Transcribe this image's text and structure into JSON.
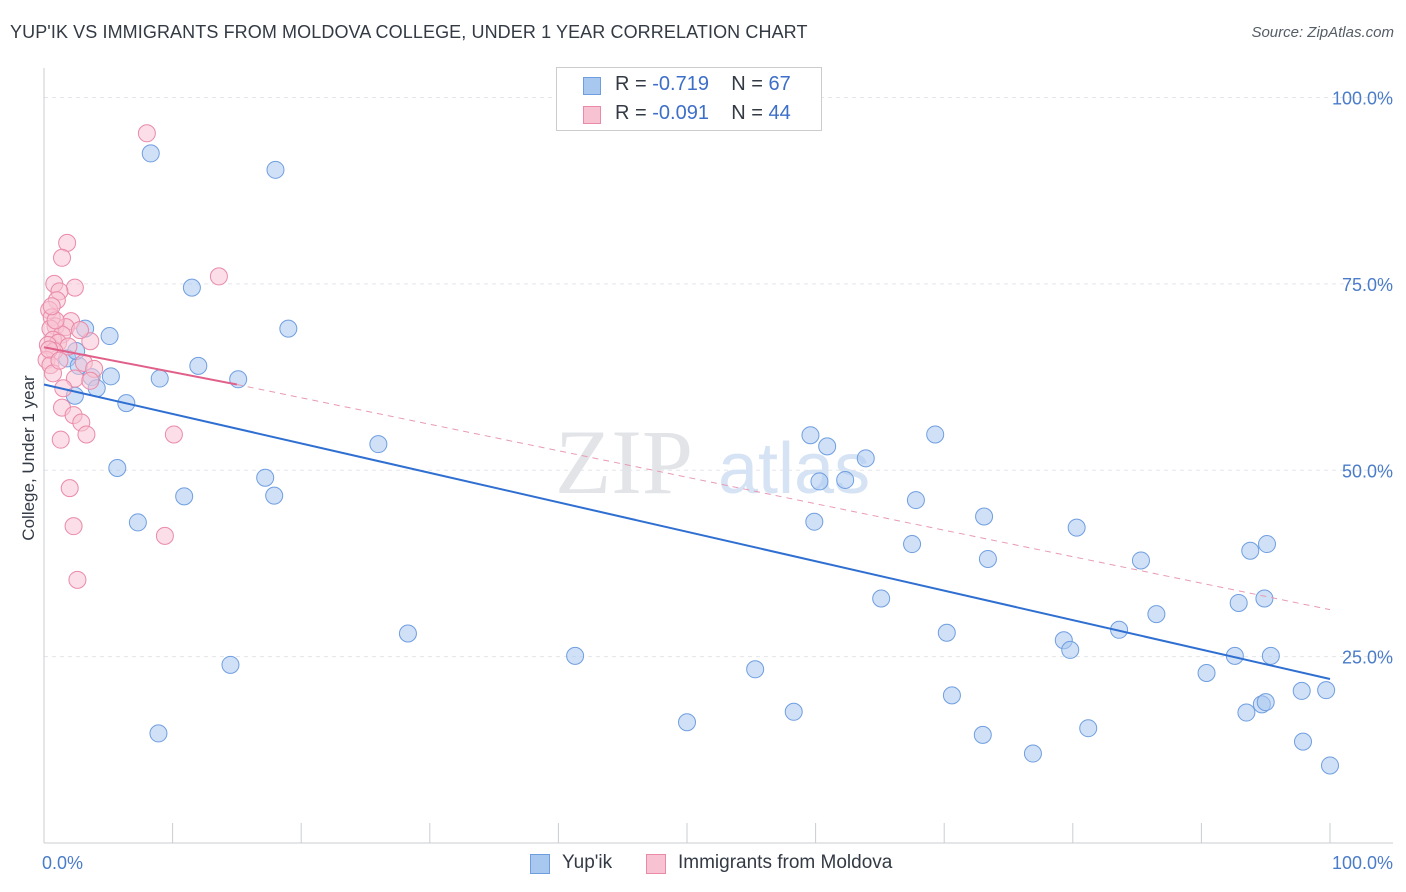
{
  "title": "YUP'IK VS IMMIGRANTS FROM MOLDOVA COLLEGE, UNDER 1 YEAR CORRELATION CHART",
  "source": "Source: ZipAtlas.com",
  "watermark": {
    "zip": "ZIP",
    "atlas": "atlas"
  },
  "legend_top": [
    {
      "r_label": "R = ",
      "r_value": "-0.719",
      "n_label": "N = ",
      "n_value": "67",
      "color": "#a9c8f0",
      "border": "#6f9ee0"
    },
    {
      "r_label": "R = ",
      "r_value": "-0.091",
      "n_label": "N = ",
      "n_value": "44",
      "color": "#f7c3d3",
      "border": "#ea8aa8"
    }
  ],
  "legend_bottom": [
    {
      "label": "Yup'ik",
      "color": "#a9c8f0",
      "border": "#6f9ee0"
    },
    {
      "label": "Immigrants from Moldova",
      "color": "#f7c3d3",
      "border": "#ea8aa8"
    }
  ],
  "chart_data": {
    "type": "scatter",
    "xlabel": "",
    "ylabel": "College, Under 1 year",
    "xlim": [
      0,
      100
    ],
    "ylim": [
      0,
      105
    ],
    "x_tick_labels": [
      {
        "value": 0,
        "label": "0.0%"
      },
      {
        "value": 100,
        "label": "100.0%"
      }
    ],
    "y_tick_labels": [
      {
        "value": 25,
        "label": "25.0%"
      },
      {
        "value": 50,
        "label": "50.0%"
      },
      {
        "value": 75,
        "label": "75.0%"
      },
      {
        "value": 100,
        "label": "100.0%"
      }
    ],
    "series": [
      {
        "name": "Yup'ik",
        "color": "#a9c8f0",
        "stroke": "#6f9ee0",
        "trend": {
          "x0": 0,
          "y0": 61.5,
          "x1": 100,
          "y1": 22.0,
          "color": "#2f6fd1"
        },
        "points": [
          [
            8.3,
            92.5
          ],
          [
            18.0,
            90.3
          ],
          [
            11.5,
            74.5
          ],
          [
            19.0,
            69.0
          ],
          [
            3.2,
            69.0
          ],
          [
            5.1,
            68.0
          ],
          [
            1.8,
            65.0
          ],
          [
            2.7,
            64.0
          ],
          [
            3.7,
            62.5
          ],
          [
            5.2,
            62.6
          ],
          [
            9.0,
            62.3
          ],
          [
            15.1,
            62.2
          ],
          [
            2.4,
            60.0
          ],
          [
            4.1,
            61.0
          ],
          [
            6.4,
            59.0
          ],
          [
            5.7,
            50.3
          ],
          [
            10.9,
            46.5
          ],
          [
            17.2,
            49.0
          ],
          [
            17.9,
            46.6
          ],
          [
            7.3,
            43.0
          ],
          [
            26.0,
            53.5
          ],
          [
            59.6,
            54.7
          ],
          [
            60.9,
            53.2
          ],
          [
            62.3,
            48.7
          ],
          [
            63.9,
            51.6
          ],
          [
            69.3,
            54.8
          ],
          [
            67.8,
            46.0
          ],
          [
            59.9,
            43.1
          ],
          [
            73.1,
            43.8
          ],
          [
            80.3,
            42.3
          ],
          [
            67.5,
            40.1
          ],
          [
            73.4,
            38.1
          ],
          [
            85.3,
            37.9
          ],
          [
            93.8,
            39.2
          ],
          [
            95.1,
            40.1
          ],
          [
            65.1,
            32.8
          ],
          [
            86.5,
            30.7
          ],
          [
            92.9,
            32.2
          ],
          [
            94.9,
            32.8
          ],
          [
            28.3,
            28.1
          ],
          [
            70.2,
            28.2
          ],
          [
            79.3,
            27.2
          ],
          [
            83.6,
            28.6
          ],
          [
            79.8,
            25.9
          ],
          [
            41.3,
            25.1
          ],
          [
            14.5,
            23.9
          ],
          [
            55.3,
            23.3
          ],
          [
            92.6,
            25.1
          ],
          [
            95.4,
            25.1
          ],
          [
            90.4,
            22.8
          ],
          [
            70.6,
            19.8
          ],
          [
            97.8,
            20.4
          ],
          [
            99.7,
            20.5
          ],
          [
            94.7,
            18.6
          ],
          [
            93.5,
            17.5
          ],
          [
            95.0,
            18.9
          ],
          [
            58.3,
            17.6
          ],
          [
            50.0,
            16.2
          ],
          [
            81.2,
            15.4
          ],
          [
            8.9,
            14.7
          ],
          [
            73.0,
            14.5
          ],
          [
            97.9,
            13.6
          ],
          [
            76.9,
            12.0
          ],
          [
            100.0,
            10.4
          ],
          [
            60.3,
            48.5
          ],
          [
            2.5,
            66.0
          ],
          [
            12.0,
            64.0
          ]
        ]
      },
      {
        "name": "Immigrants from Moldova",
        "color": "#f7c3d3",
        "stroke": "#ea8aa8",
        "trend": {
          "x0": 0,
          "y0": 66.5,
          "x1": 15,
          "y1": 61.5,
          "color": "#e0608a"
        },
        "trend_dashed": {
          "x0": 15,
          "y0": 61.5,
          "x1": 100,
          "y1": 31.3,
          "color": "#e89ab3"
        },
        "points": [
          [
            8.0,
            95.2
          ],
          [
            1.8,
            80.5
          ],
          [
            1.4,
            78.5
          ],
          [
            13.6,
            76.0
          ],
          [
            0.8,
            75.0
          ],
          [
            2.4,
            74.5
          ],
          [
            1.2,
            74.0
          ],
          [
            1.0,
            72.8
          ],
          [
            0.4,
            71.5
          ],
          [
            0.6,
            70.5
          ],
          [
            2.1,
            70.0
          ],
          [
            0.9,
            69.3
          ],
          [
            1.7,
            69.2
          ],
          [
            0.5,
            69.0
          ],
          [
            1.4,
            68.2
          ],
          [
            0.7,
            67.5
          ],
          [
            3.6,
            67.3
          ],
          [
            1.1,
            67.1
          ],
          [
            0.3,
            66.8
          ],
          [
            1.9,
            66.6
          ],
          [
            0.8,
            66.0
          ],
          [
            0.2,
            64.8
          ],
          [
            3.1,
            64.4
          ],
          [
            3.9,
            63.6
          ],
          [
            0.5,
            64.1
          ],
          [
            0.7,
            63.0
          ],
          [
            2.4,
            62.3
          ],
          [
            3.6,
            62.0
          ],
          [
            1.5,
            61.0
          ],
          [
            1.4,
            58.4
          ],
          [
            2.3,
            57.4
          ],
          [
            2.9,
            56.4
          ],
          [
            3.3,
            54.8
          ],
          [
            10.1,
            54.8
          ],
          [
            1.3,
            54.1
          ],
          [
            2.0,
            47.6
          ],
          [
            2.3,
            42.5
          ],
          [
            9.4,
            41.2
          ],
          [
            2.6,
            35.3
          ],
          [
            0.4,
            66.2
          ],
          [
            0.9,
            70.1
          ],
          [
            1.2,
            64.7
          ],
          [
            2.8,
            68.8
          ],
          [
            0.6,
            72.0
          ]
        ]
      }
    ]
  }
}
